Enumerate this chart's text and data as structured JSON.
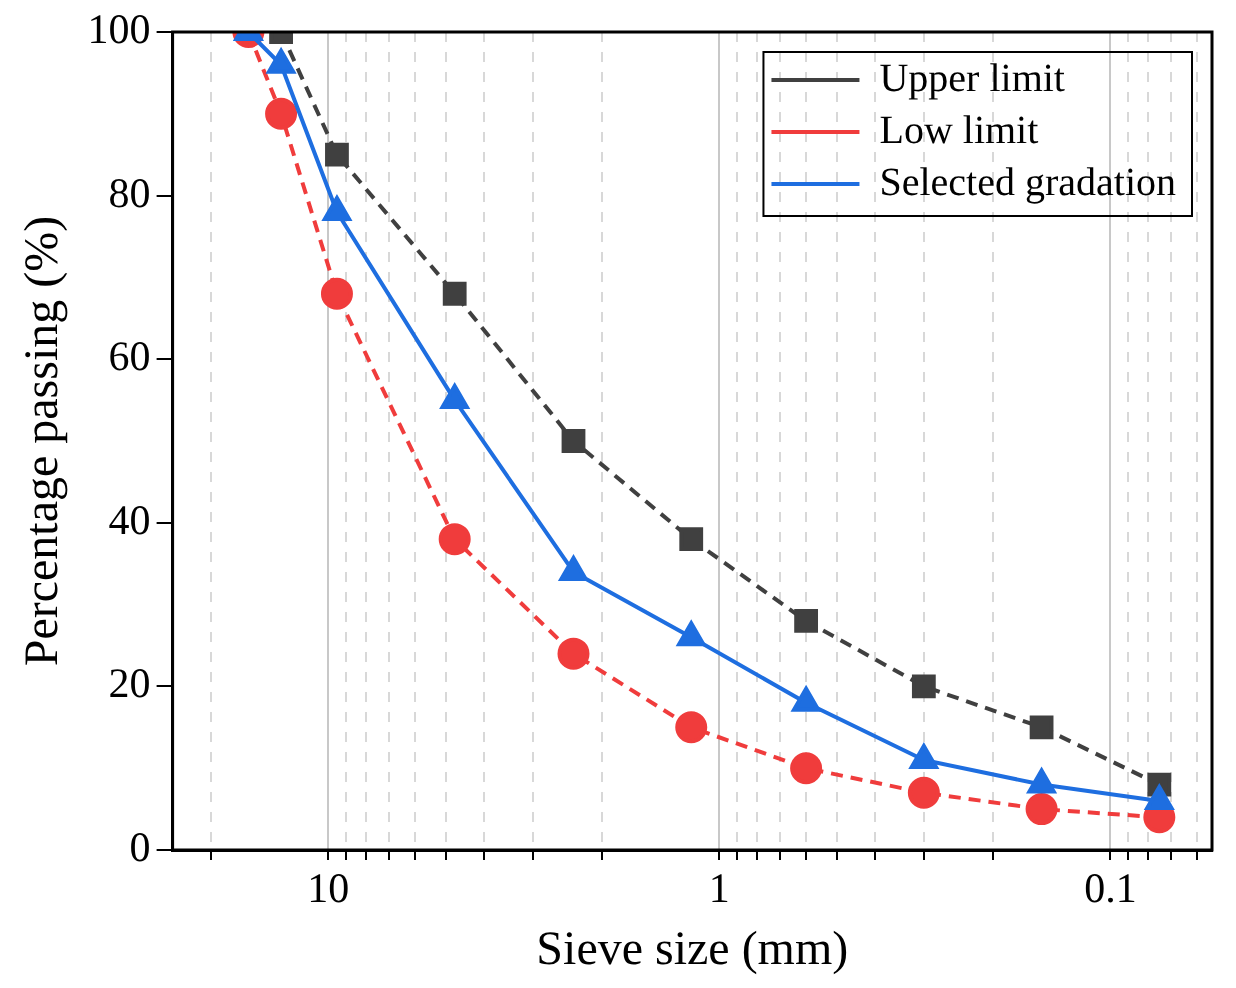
{
  "chart_data": {
    "type": "line",
    "xlabel": "Sieve size (mm)",
    "ylabel": "Percentage passing (%)",
    "x": [
      16,
      13.2,
      9.5,
      4.75,
      2.36,
      1.18,
      0.6,
      0.3,
      0.15,
      0.075
    ],
    "series": [
      {
        "name": "Upper limit",
        "color": "#404040",
        "marker": "square",
        "line_style": "dashed",
        "values": [
          null,
          100,
          85,
          68,
          50,
          38,
          28,
          20,
          15,
          8
        ]
      },
      {
        "name": "Low limit",
        "color": "#f03c3c",
        "marker": "circle",
        "line_style": "dashed",
        "values": [
          100,
          90,
          68,
          38,
          24,
          15,
          10,
          7,
          5,
          4
        ]
      },
      {
        "name": "Selected gradation",
        "color": "#1e6ee0",
        "marker": "triangle",
        "line_style": "solid",
        "values": [
          100,
          96,
          78,
          55,
          34,
          26,
          18,
          11,
          8,
          6
        ]
      }
    ],
    "log": "x",
    "xlim": [
      25,
      0.055
    ],
    "xticks": [
      {
        "value": 20,
        "label": null
      },
      10,
      {
        "value": 9,
        "label": null
      },
      {
        "value": 8,
        "label": null
      },
      {
        "value": 7,
        "label": null
      },
      {
        "value": 6,
        "label": null
      },
      {
        "value": 5,
        "label": null
      },
      {
        "value": 4,
        "label": null
      },
      {
        "value": 3,
        "label": null
      },
      {
        "value": 2,
        "label": null
      },
      1,
      {
        "value": 0.9,
        "label": null
      },
      {
        "value": 0.8,
        "label": null
      },
      {
        "value": 0.7,
        "label": null
      },
      {
        "value": 0.6,
        "label": null
      },
      {
        "value": 0.5,
        "label": null
      },
      {
        "value": 0.4,
        "label": null
      },
      {
        "value": 0.3,
        "label": null
      },
      {
        "value": 0.2,
        "label": null
      },
      0.1,
      {
        "value": 0.09,
        "label": null
      },
      {
        "value": 0.08,
        "label": null
      },
      {
        "value": 0.07,
        "label": null
      },
      {
        "value": 0.06,
        "label": null
      }
    ],
    "ylim": [
      0,
      100
    ],
    "yticks": [
      0,
      20,
      40,
      60,
      80,
      100
    ],
    "grid": "x",
    "legend": "top right"
  }
}
